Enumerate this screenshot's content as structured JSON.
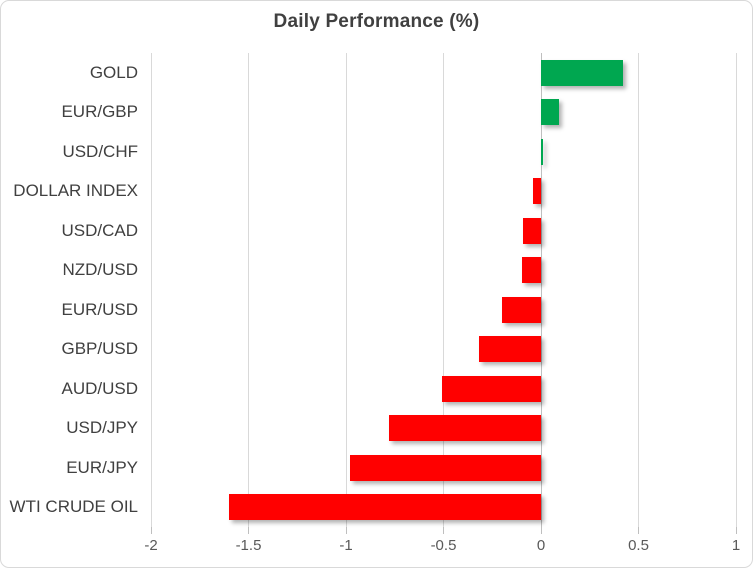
{
  "chart": {
    "title": "Daily Performance (%)"
  },
  "chart_data": {
    "type": "bar",
    "orientation": "horizontal",
    "title": "Daily Performance (%)",
    "categories": [
      "GOLD",
      "EUR/GBP",
      "USD/CHF",
      "DOLLAR INDEX",
      "USD/CAD",
      "NZD/USD",
      "EUR/USD",
      "GBP/USD",
      "AUD/USD",
      "USD/JPY",
      "EUR/JPY",
      "WTI CRUDE OIL"
    ],
    "values": [
      0.42,
      0.09,
      0.01,
      -0.04,
      -0.09,
      -0.1,
      -0.2,
      -0.32,
      -0.51,
      -0.78,
      -0.98,
      -1.6
    ],
    "xlim": [
      -2,
      1
    ],
    "x_ticks": [
      -2,
      -1.5,
      -1,
      -0.5,
      0,
      0.5,
      1
    ],
    "x_tick_labels": [
      "-2",
      "-1.5",
      "-1",
      "-0.5",
      "0",
      "0.5",
      "1"
    ],
    "grid": true,
    "legend": "none",
    "colors": {
      "positive": "#00a750",
      "negative": "#ff0000",
      "gridline": "#d9d9d9",
      "zero_axis": "#bfbfbf",
      "title_text": "#404040",
      "category_text": "#404040",
      "tick_text": "#595959",
      "frame_border": "#d9d9d9",
      "background": "#ffffff"
    }
  }
}
